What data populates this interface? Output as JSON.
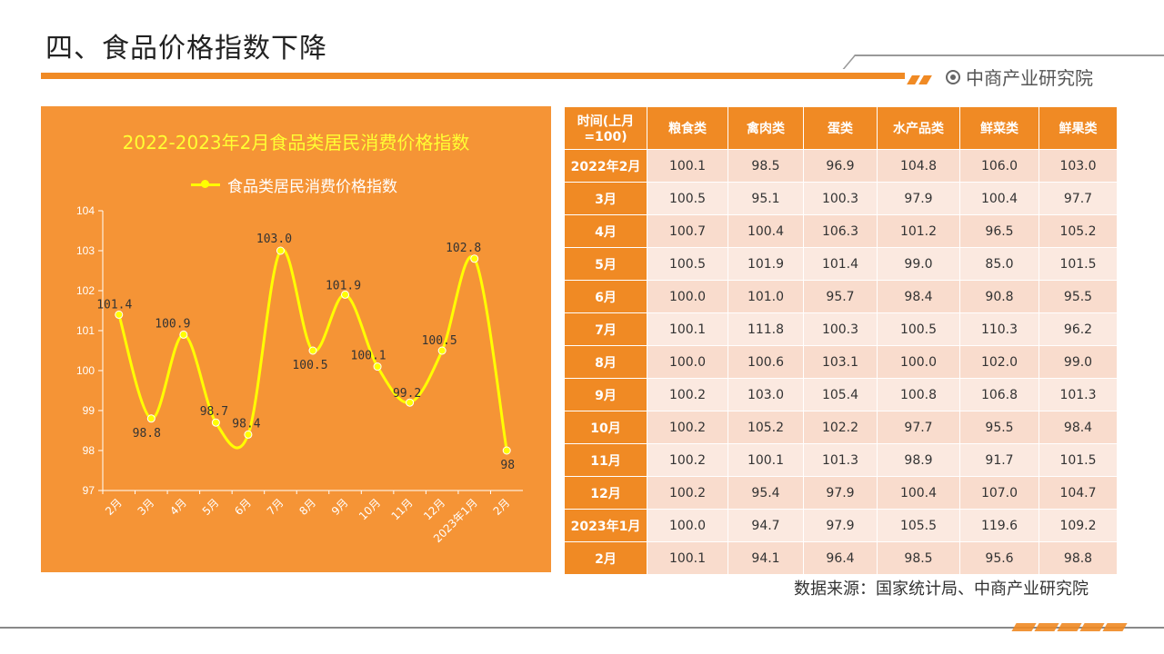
{
  "page": {
    "title": "四、食品价格指数下降",
    "brand": "中商产业研究院",
    "source": "数据来源：国家统计局、中商产业研究院"
  },
  "colors": {
    "accent": "#f08a24",
    "chart_bg": "#f59436",
    "line": "#ffff00",
    "title_yellow": "#ffff33"
  },
  "chart_data": {
    "type": "line",
    "title": "2022-2023年2月食品类居民消费价格指数",
    "categories": [
      "2月",
      "3月",
      "4月",
      "5月",
      "6月",
      "7月",
      "8月",
      "9月",
      "10月",
      "11月",
      "12月",
      "2023年1月",
      "2月"
    ],
    "series": [
      {
        "name": "食品类居民消费价格指数",
        "values": [
          101.4,
          98.8,
          100.9,
          98.7,
          98.4,
          103.0,
          100.5,
          101.9,
          100.1,
          99.2,
          100.5,
          102.8,
          98
        ]
      }
    ],
    "data_labels": [
      "101.4",
      "98.8",
      "100.9",
      "98.7",
      "98.4",
      "103.0",
      "100.5",
      "101.9",
      "100.1",
      "99.2",
      "100.5",
      "102.8",
      "98"
    ],
    "ylim": [
      97,
      104
    ],
    "yticks": [
      97,
      98,
      99,
      100,
      101,
      102,
      103,
      104
    ],
    "legend": "top",
    "grid": false
  },
  "table": {
    "headers": [
      "时间(上月=100)",
      "粮食类",
      "禽肉类",
      "蛋类",
      "水产品类",
      "鲜菜类",
      "鲜果类"
    ],
    "rows": [
      [
        "2022年2月",
        "100.1",
        "98.5",
        "96.9",
        "104.8",
        "106.0",
        "103.0"
      ],
      [
        "3月",
        "100.5",
        "95.1",
        "100.3",
        "97.9",
        "100.4",
        "97.7"
      ],
      [
        "4月",
        "100.7",
        "100.4",
        "106.3",
        "101.2",
        "96.5",
        "105.2"
      ],
      [
        "5月",
        "100.5",
        "101.9",
        "101.4",
        "99.0",
        "85.0",
        "101.5"
      ],
      [
        "6月",
        "100.0",
        "101.0",
        "95.7",
        "98.4",
        "90.8",
        "95.5"
      ],
      [
        "7月",
        "100.1",
        "111.8",
        "100.3",
        "100.5",
        "110.3",
        "96.2"
      ],
      [
        "8月",
        "100.0",
        "100.6",
        "103.1",
        "100.0",
        "102.0",
        "99.0"
      ],
      [
        "9月",
        "100.2",
        "103.0",
        "105.4",
        "100.8",
        "106.8",
        "101.3"
      ],
      [
        "10月",
        "100.2",
        "105.2",
        "102.2",
        "97.7",
        "95.5",
        "98.4"
      ],
      [
        "11月",
        "100.2",
        "100.1",
        "101.3",
        "98.9",
        "91.7",
        "101.5"
      ],
      [
        "12月",
        "100.2",
        "95.4",
        "97.9",
        "100.4",
        "107.0",
        "104.7"
      ],
      [
        "2023年1月",
        "100.0",
        "94.7",
        "97.9",
        "105.5",
        "119.6",
        "109.2"
      ],
      [
        "2月",
        "100.1",
        "94.1",
        "96.4",
        "98.5",
        "95.6",
        "98.8"
      ]
    ]
  }
}
